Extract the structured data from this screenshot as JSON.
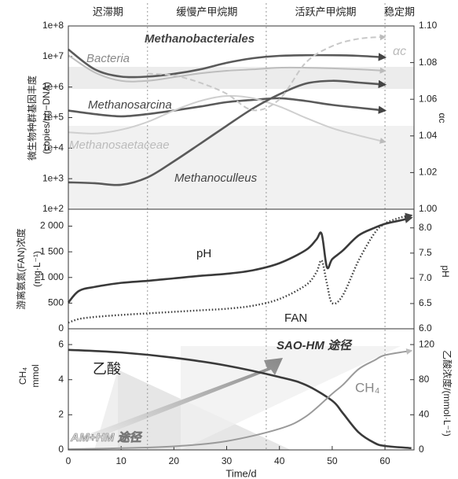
{
  "chart_data": [
    {
      "type": "line",
      "y_scale": "log",
      "phases": [
        {
          "label": "迟滞期",
          "start": 0,
          "end": 15
        },
        {
          "label": "缓慢产甲烷期",
          "start": 15,
          "end": 37.5
        },
        {
          "label": "活跃产甲烷期",
          "start": 37.5,
          "end": 60
        },
        {
          "label": "稳定期",
          "start": 60,
          "end": 65.5
        }
      ],
      "ylabel": [
        "微生物种群基因丰度",
        "(copies/ng−DNA)"
      ],
      "y2label": "αc",
      "x": [
        0,
        5,
        10,
        15,
        20,
        25,
        30,
        35,
        40,
        45,
        50,
        55,
        60
      ],
      "xlim": [
        0,
        65.5
      ],
      "ylim": [
        100,
        100000000
      ],
      "yticks": [
        {
          "value": 100,
          "label": "1e+2"
        },
        {
          "value": 1000,
          "label": "1e+3"
        },
        {
          "value": 10000,
          "label": "1e+4"
        },
        {
          "value": 100000,
          "label": "1e+5"
        },
        {
          "value": 1000000,
          "label": "1e+6"
        },
        {
          "value": 10000000,
          "label": "1e+7"
        },
        {
          "value": 100000000,
          "label": "1e+8"
        }
      ],
      "y2lim": [
        1.0,
        1.1
      ],
      "y2ticks": [
        {
          "value": 1.0,
          "label": "1.00"
        },
        1.02,
        1.04,
        1.06,
        1.08,
        {
          "value": 1.1,
          "label": "1.10"
        }
      ],
      "series": [
        {
          "name": "Methanobacteriales",
          "color": "#5a5a5a",
          "line_style": "solid",
          "arrow": true,
          "values": [
            17000000,
            3800000,
            2200000,
            2200000,
            2700000,
            3800000,
            6200000,
            8800000,
            10500000,
            11000000,
            11000000,
            10500000,
            9400000
          ]
        },
        {
          "name": "Bacteria",
          "color": "#bdbdbd",
          "line_style": "solid",
          "arrow": true,
          "values": [
            11000000,
            3000000,
            1600000,
            1600000,
            2100000,
            2800000,
            3400000,
            3800000,
            4300000,
            4300000,
            4100000,
            3800000,
            3400000
          ]
        },
        {
          "name": "Methanosarcina",
          "color": "#5a5a5a",
          "line_style": "solid",
          "arrow": true,
          "values": [
            170000,
            130000,
            110000,
            130000,
            170000,
            230000,
            320000,
            380000,
            430000,
            350000,
            260000,
            210000,
            170000
          ]
        },
        {
          "name": "Methanosaetaceae",
          "color": "#cfcfcf",
          "line_style": "solid",
          "arrow": true,
          "values": [
            33000,
            30000,
            40000,
            72000,
            170000,
            350000,
            510000,
            430000,
            230000,
            98000,
            45000,
            26000,
            16000
          ]
        },
        {
          "name": "Methanoculleus",
          "color": "#5a5a5a",
          "line_style": "solid",
          "arrow": true,
          "values": [
            760,
            710,
            630,
            1100,
            3700,
            14000,
            54000,
            200000,
            580000,
            1300000,
            1600000,
            1400000,
            1200000
          ]
        },
        {
          "name": "αc",
          "color": "#c8c8c8",
          "line_style": "dashed",
          "arrow": true,
          "axis": "y2",
          "values": [
            null,
            null,
            null,
            1.074,
            1.073,
            1.069,
            1.063,
            1.054,
            1.06,
            1.08,
            1.089,
            1.093,
            1.094
          ]
        }
      ]
    },
    {
      "type": "line",
      "ylabel": [
        "游离氨氮(FAN)浓度",
        "(mg·L⁻¹)"
      ],
      "y2label": "pH",
      "x": [
        0,
        2,
        5,
        10,
        15,
        20,
        25,
        30,
        35,
        40,
        45,
        47,
        48,
        49,
        50,
        52,
        55,
        58,
        60,
        63,
        65
      ],
      "xlim": [
        0,
        65.5
      ],
      "ylim": [
        0,
        2330
      ],
      "yticks": [
        0,
        500,
        {
          "value": 1000,
          "label": "1 000"
        },
        {
          "value": 1500,
          "label": "1 500"
        },
        {
          "value": 2000,
          "label": "2 000"
        }
      ],
      "y2lim": [
        6.0,
        8.37
      ],
      "y2ticks": [
        {
          "value": 6,
          "label": "6.0"
        },
        6.5,
        {
          "value": 7,
          "label": "7.0"
        },
        7.5,
        {
          "value": 8,
          "label": "8.0"
        }
      ],
      "series": [
        {
          "name": "pH",
          "color": "#3a3a3a",
          "line_style": "solid",
          "arrow": true,
          "axis": "y2",
          "values": [
            6.52,
            6.75,
            6.83,
            6.91,
            6.95,
            7.0,
            7.05,
            7.09,
            7.16,
            7.3,
            7.56,
            7.77,
            7.88,
            7.22,
            7.38,
            7.55,
            7.85,
            8.0,
            8.08,
            8.15,
            8.2
          ]
        },
        {
          "name": "FAN",
          "color": "#3a3a3a",
          "line_style": "dotted",
          "arrow": true,
          "values": [
            120,
            190,
            230,
            270,
            300,
            330,
            360,
            390,
            450,
            580,
            850,
            1100,
            1330,
            880,
            500,
            650,
            1330,
            1860,
            2050,
            2170,
            2210
          ]
        }
      ]
    },
    {
      "type": "line",
      "ylabel": [
        "CH₄",
        "mmol"
      ],
      "y2label": "乙酸浓度/(mmol·L⁻¹)",
      "xlabel": "Time/d",
      "annotations": [
        "SAO-HM 途径",
        "AM+HM 途径"
      ],
      "x": [
        0,
        10,
        20,
        30,
        40,
        45,
        50,
        52,
        55,
        58,
        60,
        65
      ],
      "xlim": [
        0,
        65.5
      ],
      "xticks": [
        0,
        10,
        20,
        30,
        40,
        50,
        60
      ],
      "ylim": [
        0,
        6.9
      ],
      "yticks": [
        0,
        2,
        4,
        6
      ],
      "y2lim": [
        0,
        138
      ],
      "y2ticks": [
        0,
        40,
        80,
        120
      ],
      "series": [
        {
          "name": "乙酸",
          "color": "#3a3a3a",
          "line_style": "solid",
          "arrow": false,
          "axis": "y2",
          "values": [
            114,
            111,
            105,
            96,
            83,
            74,
            56,
            42,
            20,
            8,
            4.5,
            2
          ]
        },
        {
          "name": "CH₄",
          "color": "#9a9a9a",
          "line_style": "solid",
          "arrow": true,
          "values": [
            0.04,
            0.1,
            0.2,
            0.5,
            1.2,
            1.9,
            3.2,
            3.7,
            4.6,
            5.1,
            5.4,
            5.65
          ]
        }
      ]
    }
  ]
}
